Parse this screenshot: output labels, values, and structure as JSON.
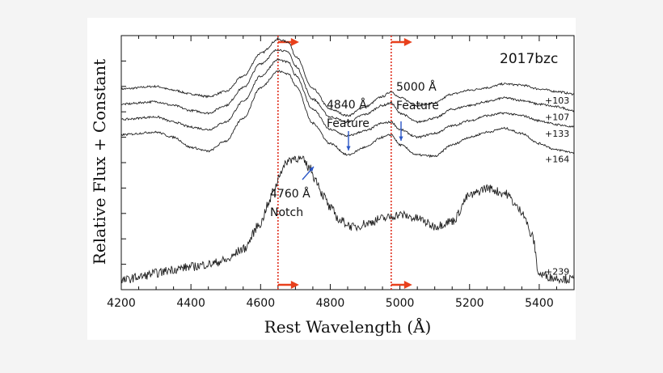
{
  "chart_data": {
    "type": "line",
    "object_label": "2017bzc",
    "xlabel": "Rest Wavelength (Å)",
    "ylabel": "Relative Flux + Constant",
    "xlim": [
      4200,
      5500
    ],
    "ylim": [
      0,
      10
    ],
    "x_ticks": [
      "4200",
      "4400",
      "4600",
      "4800",
      "5000",
      "5200",
      "5400"
    ],
    "grid": false,
    "legend": "none",
    "series": [
      {
        "name": "+103",
        "x": [
          4200,
          4300,
          4350,
          4400,
          4450,
          4500,
          4550,
          4600,
          4650,
          4680,
          4700,
          4750,
          4800,
          4850,
          4900,
          4950,
          4975,
          5000,
          5050,
          5100,
          5150,
          5200,
          5250,
          5300,
          5350,
          5400,
          5450,
          5500
        ],
        "values": [
          7.9,
          8.0,
          7.85,
          7.7,
          7.6,
          7.8,
          8.4,
          9.3,
          9.85,
          9.75,
          9.2,
          7.9,
          7.1,
          6.85,
          7.2,
          7.6,
          7.8,
          7.55,
          7.25,
          7.35,
          7.7,
          7.85,
          7.95,
          8.1,
          8.05,
          7.9,
          7.8,
          7.7
        ]
      },
      {
        "name": "+107",
        "x": [
          4200,
          4300,
          4350,
          4400,
          4450,
          4500,
          4550,
          4600,
          4650,
          4680,
          4700,
          4750,
          4800,
          4850,
          4900,
          4950,
          4975,
          5000,
          5050,
          5100,
          5150,
          5200,
          5250,
          5300,
          5350,
          5400,
          5450,
          5500
        ],
        "values": [
          7.3,
          7.4,
          7.25,
          7.05,
          6.95,
          7.25,
          7.95,
          8.9,
          9.45,
          9.35,
          8.8,
          7.5,
          6.8,
          6.6,
          6.9,
          7.25,
          7.35,
          6.95,
          6.6,
          6.75,
          7.1,
          7.25,
          7.4,
          7.55,
          7.45,
          7.3,
          7.2,
          7.05
        ]
      },
      {
        "name": "+133",
        "x": [
          4200,
          4300,
          4350,
          4400,
          4450,
          4500,
          4550,
          4600,
          4650,
          4680,
          4700,
          4750,
          4800,
          4850,
          4900,
          4950,
          4975,
          5000,
          5050,
          5100,
          5150,
          5200,
          5250,
          5300,
          5350,
          5400,
          5450,
          5500
        ],
        "values": [
          6.7,
          6.8,
          6.6,
          6.4,
          6.3,
          6.6,
          7.4,
          8.4,
          9.05,
          8.95,
          8.45,
          7.1,
          6.3,
          6.05,
          6.25,
          6.55,
          6.6,
          6.3,
          6.0,
          6.15,
          6.45,
          6.65,
          6.85,
          6.95,
          6.85,
          6.65,
          6.5,
          6.4
        ]
      },
      {
        "name": "+164",
        "x": [
          4200,
          4300,
          4350,
          4400,
          4450,
          4500,
          4550,
          4600,
          4650,
          4680,
          4700,
          4750,
          4800,
          4850,
          4900,
          4950,
          4975,
          5000,
          5050,
          5100,
          5150,
          5200,
          5250,
          5300,
          5350,
          5400,
          5450,
          5500
        ],
        "values": [
          6.1,
          6.2,
          6.0,
          5.6,
          5.45,
          5.85,
          6.75,
          7.95,
          8.6,
          8.5,
          8.05,
          6.55,
          5.75,
          5.3,
          5.6,
          6.0,
          6.1,
          5.7,
          5.3,
          5.25,
          5.7,
          6.0,
          6.2,
          6.35,
          6.15,
          5.75,
          5.5,
          5.4
        ]
      },
      {
        "name": "+239",
        "x": [
          4200,
          4250,
          4300,
          4350,
          4400,
          4450,
          4500,
          4550,
          4600,
          4620,
          4640,
          4660,
          4680,
          4700,
          4720,
          4740,
          4760,
          4780,
          4800,
          4830,
          4870,
          4900,
          4950,
          5000,
          5050,
          5100,
          5150,
          5200,
          5250,
          5300,
          5350,
          5380,
          5400,
          5450,
          5500
        ],
        "values": [
          0.35,
          0.5,
          0.65,
          0.8,
          0.9,
          1.0,
          1.15,
          1.6,
          2.6,
          3.3,
          4.0,
          4.7,
          5.1,
          5.2,
          5.1,
          4.8,
          4.3,
          3.7,
          3.2,
          2.7,
          2.45,
          2.6,
          2.8,
          2.95,
          2.8,
          2.5,
          2.7,
          3.7,
          4.0,
          3.8,
          3.1,
          2.1,
          0.6,
          0.45,
          0.4
        ]
      }
    ],
    "vlines": [
      4650,
      4975
    ],
    "annotations": [
      {
        "text": "4840 Å",
        "text2": "Feature",
        "points_to": 4855
      },
      {
        "text": "5000 Å",
        "text2": "Feature",
        "points_to": 5008
      },
      {
        "text": "4760 Å",
        "text2": "Notch",
        "points_to": 4762
      }
    ],
    "colors": {
      "spectra": "#222222",
      "vline": "#e0301e",
      "arrow_red": "#e8401c",
      "arrow_blue": "#2a56c6"
    }
  }
}
